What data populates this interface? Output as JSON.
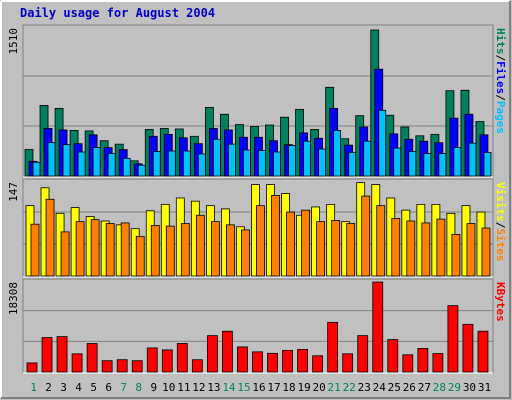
{
  "colors": {
    "background": "#c0c0c0",
    "plot_bg": "#c0c0c0",
    "title": "#0000cc",
    "grid": "#808080",
    "hits": "#00805c",
    "files": "#0000ff",
    "pages": "#00c0ff",
    "visits": "#ffff00",
    "sites": "#ff8000",
    "kbytes": "#ff0000",
    "weekday_label": "#000000",
    "weekend_label": "#00805c",
    "separator": "#000000"
  },
  "chart_data": {
    "type": "bar",
    "title": "Daily usage for August 2004",
    "categories": [
      "1",
      "2",
      "3",
      "4",
      "5",
      "6",
      "7",
      "8",
      "9",
      "10",
      "11",
      "12",
      "13",
      "14",
      "15",
      "16",
      "17",
      "18",
      "19",
      "20",
      "21",
      "22",
      "23",
      "24",
      "25",
      "26",
      "27",
      "28",
      "29",
      "30",
      "31"
    ],
    "weekend_days": [
      "1",
      "7",
      "8",
      "14",
      "15",
      "21",
      "22",
      "28",
      "29"
    ],
    "panels": [
      {
        "id": "hits",
        "max_label": "1510",
        "ylim": [
          0,
          1510
        ],
        "legend": [
          {
            "name": "Pages",
            "color_key": "pages"
          },
          {
            "name": "Files",
            "color_key": "files"
          },
          {
            "name": "Hits",
            "color_key": "hits"
          }
        ],
        "series": [
          {
            "name": "Hits",
            "color_key": "hits",
            "values": [
              270,
              720,
              690,
              465,
              460,
              360,
              325,
              155,
              475,
              485,
              480,
              405,
              700,
              630,
              525,
              505,
              520,
              600,
              680,
              475,
              905,
              380,
              615,
              1490,
              620,
              500,
              410,
              425,
              870,
              875,
              555
            ]
          },
          {
            "name": "Files",
            "color_key": "files",
            "values": [
              150,
              485,
              470,
              330,
              420,
              290,
              270,
              125,
              405,
              425,
              390,
              330,
              485,
              470,
              395,
              395,
              360,
              320,
              440,
              385,
              690,
              315,
              500,
              1090,
              430,
              375,
              355,
              340,
              590,
              630,
              420
            ]
          },
          {
            "name": "Pages",
            "color_key": "pages",
            "values": [
              140,
              340,
              320,
              245,
              290,
              230,
              180,
              110,
              250,
              255,
              255,
              225,
              375,
              325,
              265,
              260,
              245,
              310,
              355,
              275,
              465,
              240,
              355,
              670,
              285,
              250,
              230,
              230,
              290,
              335,
              240
            ]
          }
        ]
      },
      {
        "id": "visits",
        "max_label": "147",
        "ylim": [
          0,
          147
        ],
        "legend": [
          {
            "name": "Sites",
            "color_key": "sites"
          },
          {
            "name": "Visits",
            "color_key": "visits"
          }
        ],
        "series": [
          {
            "name": "Visits",
            "color_key": "visits",
            "values": [
              110,
              138,
              98,
              107,
              93,
              86,
              80,
              74,
              102,
              112,
              122,
              117,
              110,
              105,
              77,
              143,
              143,
              129,
              95,
              108,
              112,
              85,
              146,
              143,
              122,
              103,
              112,
              112,
              98,
              110,
              100
            ]
          },
          {
            "name": "Sites",
            "color_key": "sites",
            "values": [
              81,
              120,
              69,
              85,
              88,
              82,
              83,
              62,
              79,
              78,
              82,
              95,
              85,
              80,
              72,
              110,
              126,
              100,
              103,
              85,
              87,
              82,
              125,
              110,
              90,
              86,
              83,
              89,
              65,
              82,
              75
            ]
          }
        ]
      },
      {
        "id": "kbytes",
        "max_label": "18308",
        "ylim": [
          0,
          18308
        ],
        "legend": [
          {
            "name": "KBytes",
            "color_key": "kbytes"
          }
        ],
        "series": [
          {
            "name": "KBytes",
            "color_key": "kbytes",
            "values": [
              1850,
              7000,
              7200,
              3700,
              5800,
              2300,
              2500,
              2300,
              4900,
              4500,
              5800,
              2500,
              7400,
              8300,
              5100,
              4100,
              3800,
              4400,
              4600,
              3300,
              10100,
              3700,
              7400,
              18300,
              6600,
              3500,
              4800,
              3750,
              13500,
              9700,
              8300
            ]
          }
        ]
      }
    ]
  }
}
